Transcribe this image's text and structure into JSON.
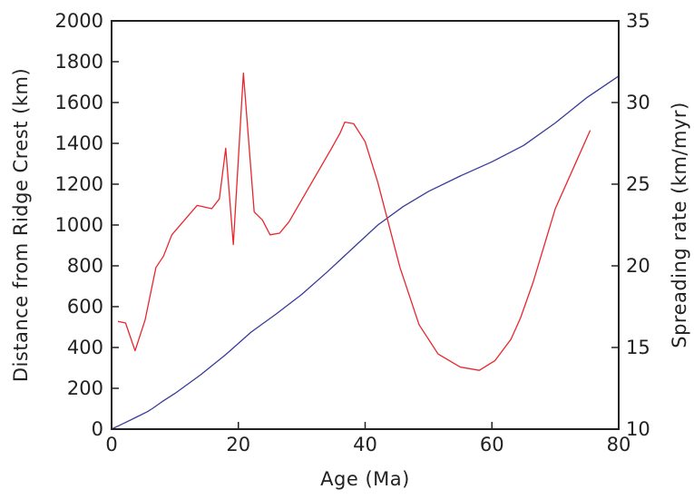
{
  "chart_data": {
    "type": "line",
    "title": "",
    "xlabel": "Age (Ma)",
    "ylabel": "Distance from Ridge Crest (km)",
    "y2label": "Spreading rate (km/myr)",
    "xlim": [
      0,
      80
    ],
    "ylim": [
      0,
      2000
    ],
    "y2lim": [
      10,
      35
    ],
    "x_ticks": [
      0,
      20,
      40,
      60,
      80
    ],
    "y_ticks": [
      0,
      200,
      400,
      600,
      800,
      1000,
      1200,
      1400,
      1600,
      1800,
      2000
    ],
    "y2_ticks": [
      10,
      15,
      20,
      25,
      30,
      35
    ],
    "grid": false,
    "legend": "none",
    "series": [
      {
        "axis": "left",
        "color": "#3a3a9a",
        "x": [
          0,
          2,
          4,
          5.6,
          6.4,
          8,
          10,
          14,
          18,
          22,
          26,
          30,
          34,
          38,
          42,
          46,
          50,
          55,
          60,
          65,
          70,
          75,
          80
        ],
        "y": [
          0,
          30,
          60,
          85,
          100,
          135,
          175,
          265,
          365,
          475,
          565,
          660,
          770,
          885,
          1000,
          1090,
          1165,
          1240,
          1310,
          1390,
          1500,
          1625,
          1730
        ]
      },
      {
        "axis": "right",
        "color": "#e8262d",
        "x": [
          1,
          2.2,
          3.7,
          5.3,
          7,
          8.2,
          9.5,
          13.5,
          15.8,
          17,
          18,
          19.2,
          20.8,
          22.5,
          23.8,
          25,
          26.5,
          28,
          34.7,
          36,
          36.8,
          38.2,
          40,
          42,
          45.5,
          48.5,
          51.5,
          55,
          58,
          60.5,
          63,
          64.5,
          66.5,
          70,
          75.5
        ],
        "y": [
          16.6,
          16.5,
          14.8,
          16.7,
          19.9,
          20.6,
          21.9,
          23.7,
          23.5,
          24.1,
          27.2,
          21.3,
          31.8,
          23.3,
          22.8,
          21.9,
          22.0,
          22.7,
          27.2,
          28.1,
          28.8,
          28.7,
          27.6,
          25.1,
          19.9,
          16.4,
          14.6,
          13.8,
          13.6,
          14.2,
          15.5,
          16.8,
          19.0,
          23.5,
          28.3
        ]
      }
    ]
  }
}
